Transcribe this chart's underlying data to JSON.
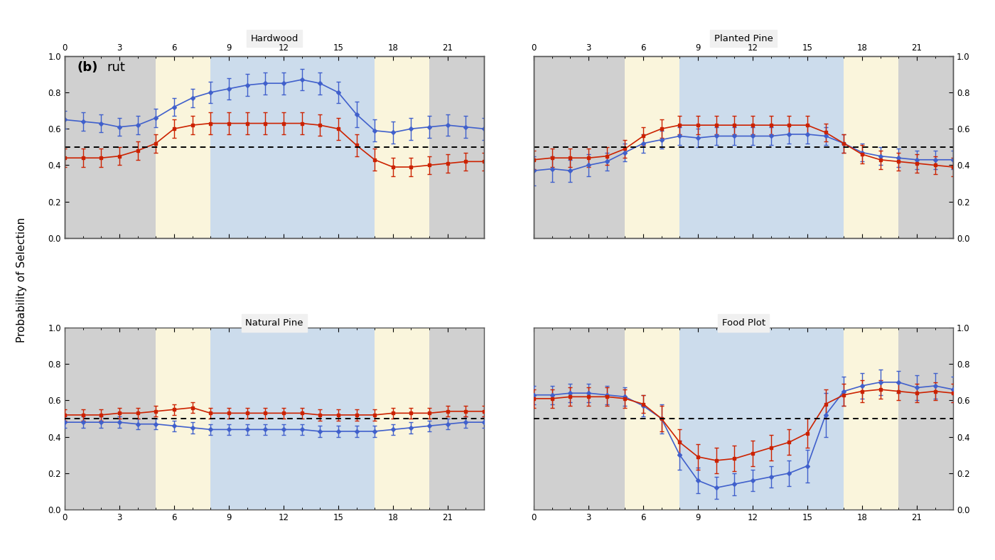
{
  "titles": [
    "Hardwood",
    "Planted Pine",
    "Natural Pine",
    "Food Plot"
  ],
  "label_bold": "(b)",
  "label_normal": "rut",
  "ylabel": "Probability of Selection",
  "xlim": [
    0,
    23
  ],
  "ylim": [
    0.0,
    1.0
  ],
  "xticks": [
    0,
    3,
    6,
    9,
    12,
    15,
    18,
    21
  ],
  "yticks": [
    0.0,
    0.2,
    0.4,
    0.6,
    0.8,
    1.0
  ],
  "hline": 0.5,
  "bg_gray": "#d0d0d0",
  "bg_cream": "#faf5dc",
  "bg_blue": "#ccdcec",
  "blue_color": "#4060cc",
  "red_color": "#cc2200",
  "x": [
    0,
    1,
    2,
    3,
    4,
    5,
    6,
    7,
    8,
    9,
    10,
    11,
    12,
    13,
    14,
    15,
    16,
    17,
    18,
    19,
    20,
    21,
    22,
    23
  ],
  "bands": [
    {
      "start": 0,
      "end": 5,
      "color": "gray"
    },
    {
      "start": 5,
      "end": 8,
      "color": "cream"
    },
    {
      "start": 8,
      "end": 17,
      "color": "blue"
    },
    {
      "start": 17,
      "end": 20,
      "color": "cream"
    },
    {
      "start": 20,
      "end": 23,
      "color": "gray"
    }
  ],
  "hardwood_blue": [
    0.65,
    0.64,
    0.63,
    0.61,
    0.62,
    0.66,
    0.72,
    0.77,
    0.8,
    0.82,
    0.84,
    0.85,
    0.85,
    0.87,
    0.85,
    0.8,
    0.68,
    0.59,
    0.58,
    0.6,
    0.61,
    0.62,
    0.61,
    0.6
  ],
  "hardwood_blue_err": [
    0.05,
    0.05,
    0.05,
    0.05,
    0.05,
    0.05,
    0.05,
    0.05,
    0.06,
    0.06,
    0.06,
    0.06,
    0.06,
    0.06,
    0.06,
    0.06,
    0.07,
    0.06,
    0.06,
    0.06,
    0.06,
    0.06,
    0.06,
    0.06
  ],
  "hardwood_red": [
    0.44,
    0.44,
    0.44,
    0.45,
    0.48,
    0.52,
    0.6,
    0.62,
    0.63,
    0.63,
    0.63,
    0.63,
    0.63,
    0.63,
    0.62,
    0.6,
    0.51,
    0.43,
    0.39,
    0.39,
    0.4,
    0.41,
    0.42,
    0.42
  ],
  "hardwood_red_err": [
    0.05,
    0.05,
    0.05,
    0.05,
    0.05,
    0.05,
    0.05,
    0.05,
    0.06,
    0.06,
    0.06,
    0.06,
    0.06,
    0.06,
    0.06,
    0.06,
    0.06,
    0.06,
    0.05,
    0.05,
    0.05,
    0.05,
    0.05,
    0.05
  ],
  "planted_blue": [
    0.37,
    0.38,
    0.37,
    0.4,
    0.42,
    0.47,
    0.52,
    0.54,
    0.56,
    0.55,
    0.56,
    0.56,
    0.56,
    0.56,
    0.57,
    0.57,
    0.56,
    0.52,
    0.47,
    0.45,
    0.44,
    0.43,
    0.43,
    0.43
  ],
  "planted_blue_err": [
    0.08,
    0.07,
    0.06,
    0.06,
    0.05,
    0.05,
    0.05,
    0.05,
    0.05,
    0.05,
    0.05,
    0.05,
    0.05,
    0.05,
    0.05,
    0.05,
    0.05,
    0.05,
    0.05,
    0.05,
    0.05,
    0.05,
    0.05,
    0.05
  ],
  "planted_red": [
    0.43,
    0.44,
    0.44,
    0.44,
    0.45,
    0.49,
    0.56,
    0.6,
    0.62,
    0.62,
    0.62,
    0.62,
    0.62,
    0.62,
    0.62,
    0.62,
    0.58,
    0.52,
    0.46,
    0.43,
    0.42,
    0.41,
    0.4,
    0.39
  ],
  "planted_red_err": [
    0.05,
    0.05,
    0.05,
    0.05,
    0.05,
    0.05,
    0.05,
    0.05,
    0.05,
    0.05,
    0.05,
    0.05,
    0.05,
    0.05,
    0.05,
    0.05,
    0.05,
    0.05,
    0.05,
    0.05,
    0.05,
    0.05,
    0.05,
    0.05
  ],
  "natural_blue": [
    0.48,
    0.48,
    0.48,
    0.48,
    0.47,
    0.47,
    0.46,
    0.45,
    0.44,
    0.44,
    0.44,
    0.44,
    0.44,
    0.44,
    0.43,
    0.43,
    0.43,
    0.43,
    0.44,
    0.45,
    0.46,
    0.47,
    0.48,
    0.48
  ],
  "natural_blue_err": [
    0.03,
    0.03,
    0.03,
    0.03,
    0.03,
    0.03,
    0.03,
    0.03,
    0.03,
    0.03,
    0.03,
    0.03,
    0.03,
    0.03,
    0.03,
    0.03,
    0.03,
    0.03,
    0.03,
    0.03,
    0.03,
    0.03,
    0.03,
    0.03
  ],
  "natural_red": [
    0.52,
    0.52,
    0.52,
    0.53,
    0.53,
    0.54,
    0.55,
    0.56,
    0.53,
    0.53,
    0.53,
    0.53,
    0.53,
    0.53,
    0.52,
    0.52,
    0.52,
    0.52,
    0.53,
    0.53,
    0.53,
    0.54,
    0.54,
    0.54
  ],
  "natural_red_err": [
    0.03,
    0.03,
    0.03,
    0.03,
    0.03,
    0.03,
    0.03,
    0.03,
    0.03,
    0.03,
    0.03,
    0.03,
    0.03,
    0.03,
    0.03,
    0.03,
    0.03,
    0.03,
    0.03,
    0.03,
    0.03,
    0.03,
    0.03,
    0.03
  ],
  "food_blue": [
    0.63,
    0.63,
    0.64,
    0.64,
    0.63,
    0.62,
    0.57,
    0.5,
    0.3,
    0.16,
    0.12,
    0.14,
    0.16,
    0.18,
    0.2,
    0.24,
    0.52,
    0.65,
    0.68,
    0.7,
    0.7,
    0.67,
    0.68,
    0.66
  ],
  "food_blue_err": [
    0.05,
    0.05,
    0.05,
    0.05,
    0.05,
    0.05,
    0.06,
    0.08,
    0.08,
    0.07,
    0.06,
    0.06,
    0.06,
    0.06,
    0.07,
    0.09,
    0.12,
    0.08,
    0.07,
    0.07,
    0.06,
    0.07,
    0.07,
    0.07
  ],
  "food_red": [
    0.61,
    0.61,
    0.62,
    0.62,
    0.62,
    0.61,
    0.58,
    0.5,
    0.37,
    0.29,
    0.27,
    0.28,
    0.31,
    0.34,
    0.37,
    0.42,
    0.58,
    0.63,
    0.65,
    0.66,
    0.65,
    0.64,
    0.65,
    0.64
  ],
  "food_red_err": [
    0.05,
    0.05,
    0.05,
    0.05,
    0.05,
    0.05,
    0.05,
    0.07,
    0.07,
    0.07,
    0.07,
    0.07,
    0.07,
    0.07,
    0.07,
    0.08,
    0.08,
    0.06,
    0.06,
    0.05,
    0.05,
    0.05,
    0.05,
    0.05
  ]
}
